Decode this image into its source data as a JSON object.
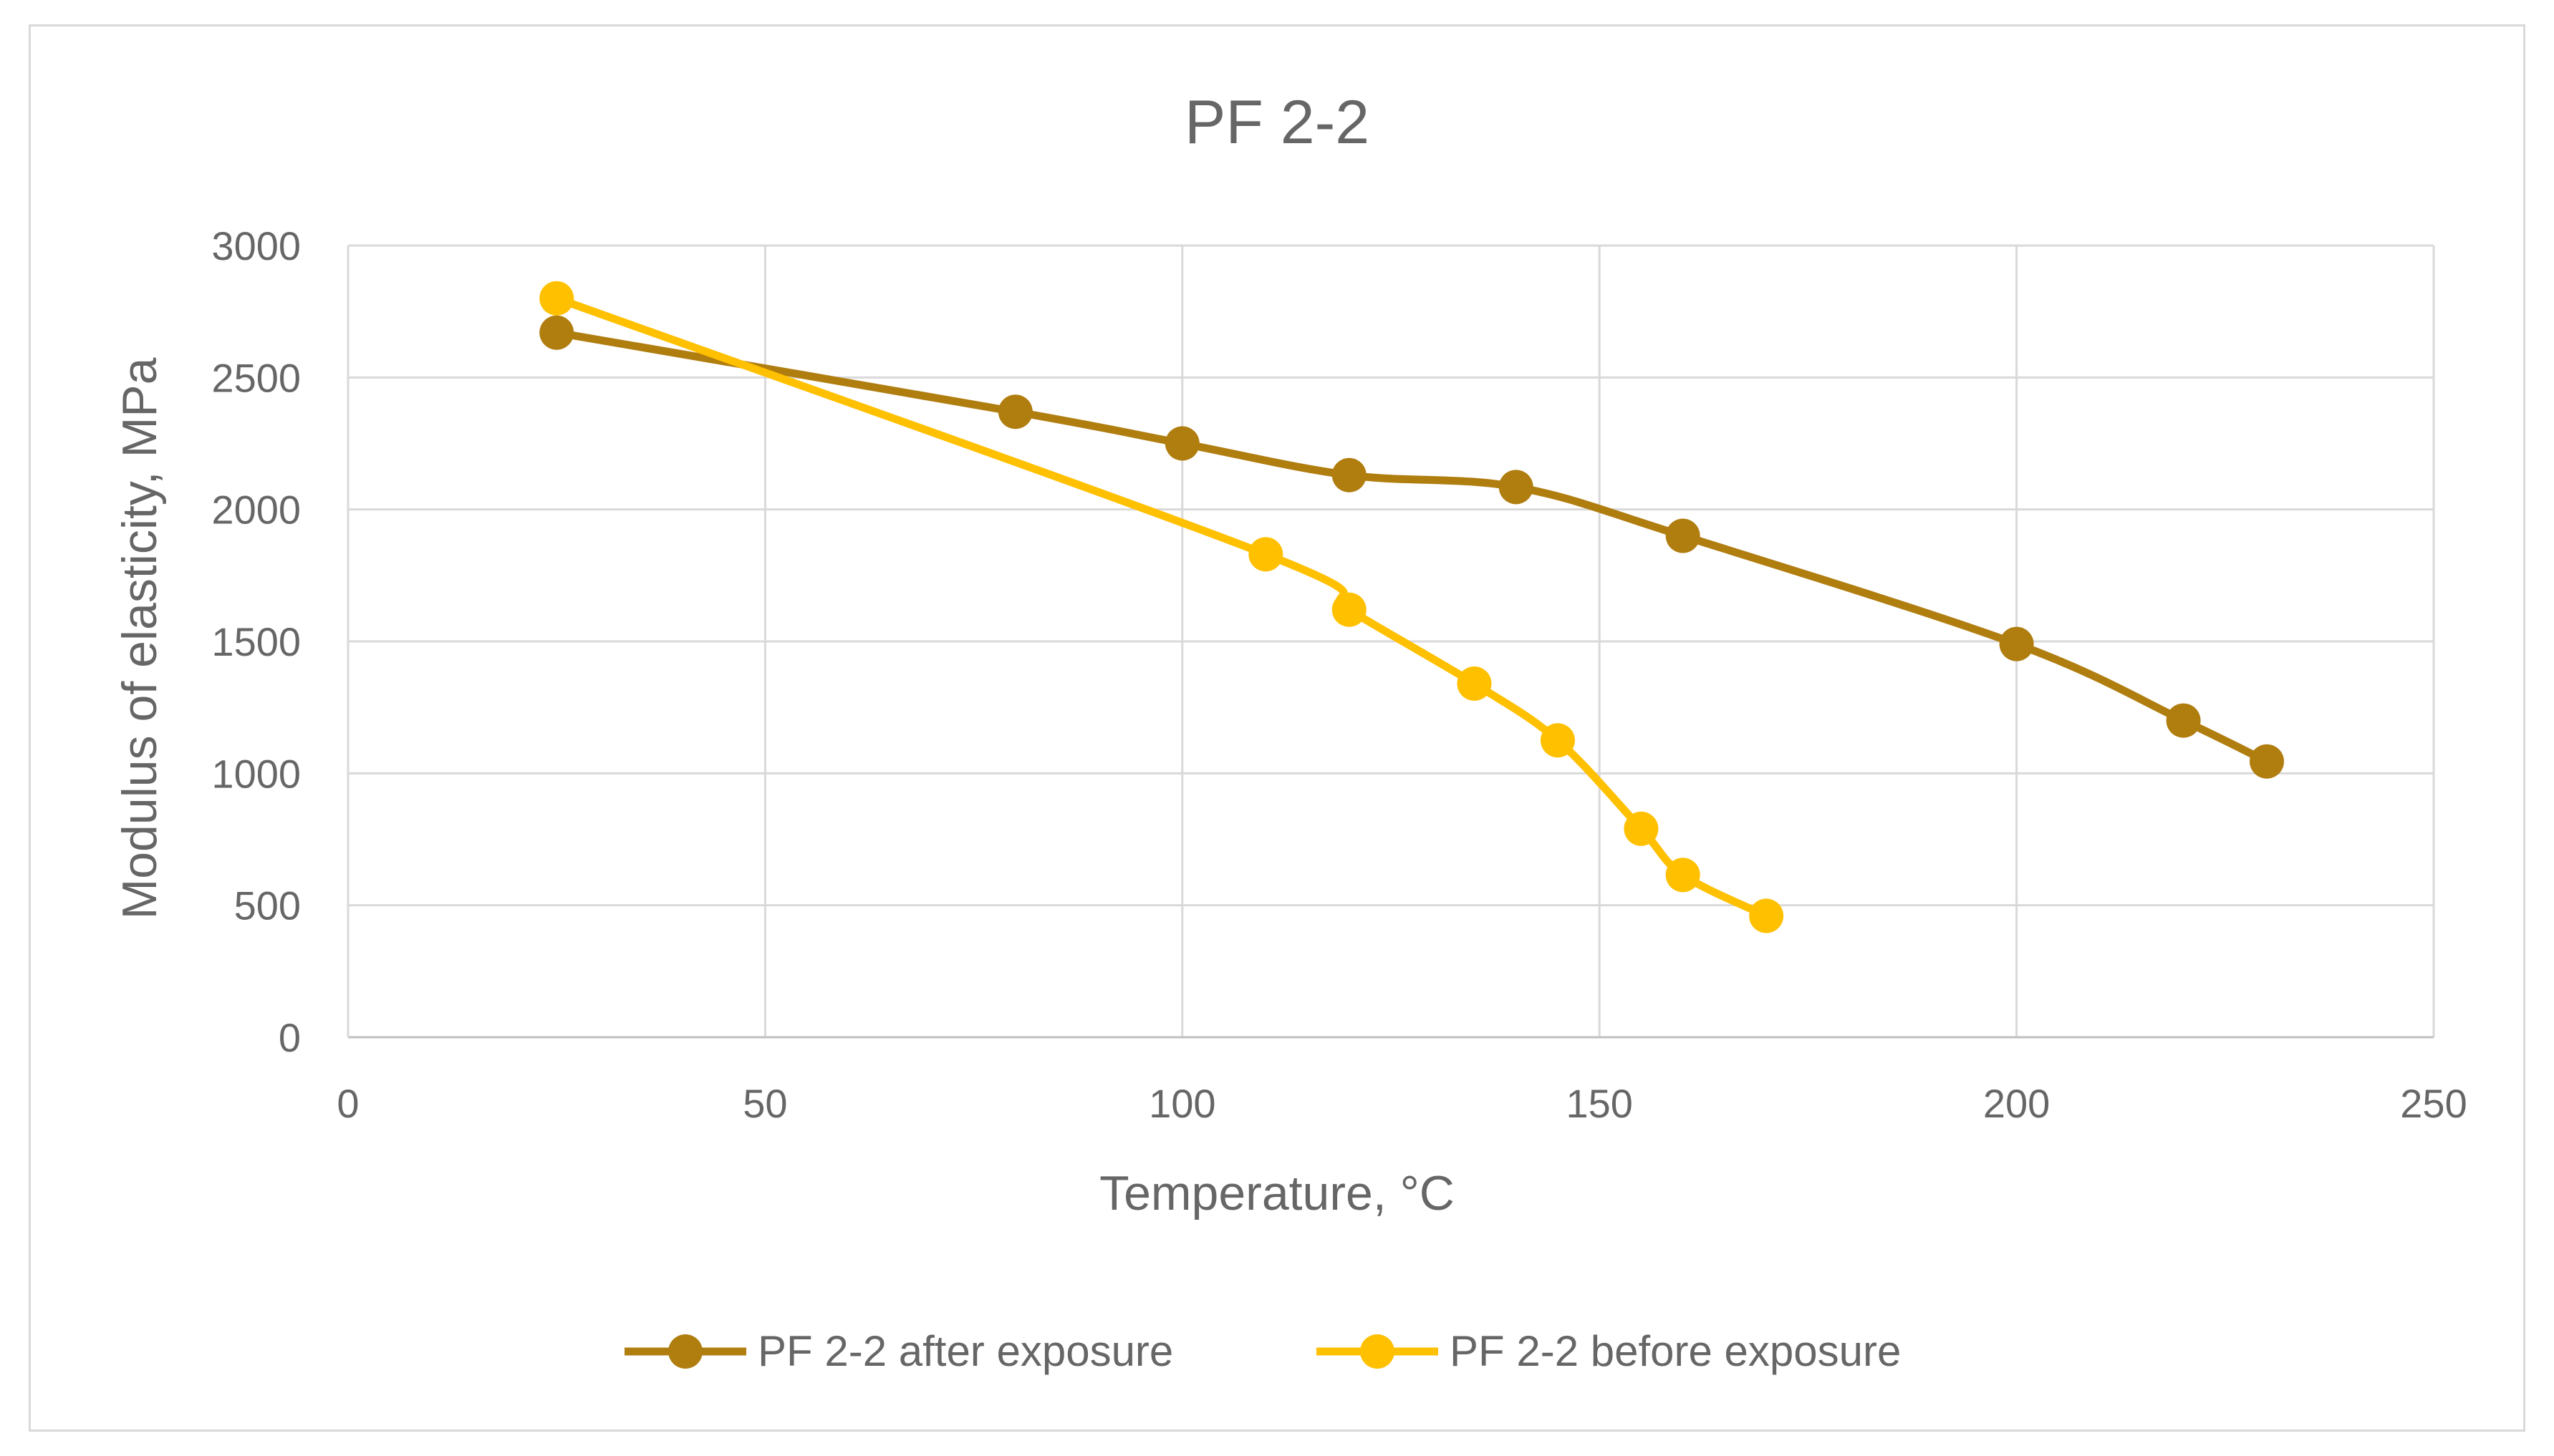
{
  "chart_data": {
    "type": "line",
    "title": "PF 2-2",
    "xlabel": "Temperature, °C",
    "ylabel": "Modulus of elasticity, MPa",
    "xlim": [
      0,
      250
    ],
    "ylim": [
      0,
      3000
    ],
    "x_ticks": [
      0,
      50,
      100,
      150,
      200,
      250
    ],
    "y_ticks": [
      0,
      500,
      1000,
      1500,
      2000,
      2500,
      3000
    ],
    "grid": true,
    "legend_position": "bottom",
    "series": [
      {
        "name": "PF 2-2 after exposure",
        "color": "#b07d0f",
        "x": [
          25,
          80,
          100,
          120,
          140,
          160,
          200,
          220,
          230
        ],
        "y": [
          2670,
          2370,
          2250,
          2130,
          2085,
          1900,
          1490,
          1200,
          1045
        ]
      },
      {
        "name": "PF 2-2 before exposure",
        "color": "#ffc000",
        "x": [
          25,
          110,
          120,
          135,
          145,
          155,
          160,
          170
        ],
        "y": [
          2800,
          1830,
          1620,
          1340,
          1125,
          790,
          615,
          460
        ]
      }
    ]
  }
}
